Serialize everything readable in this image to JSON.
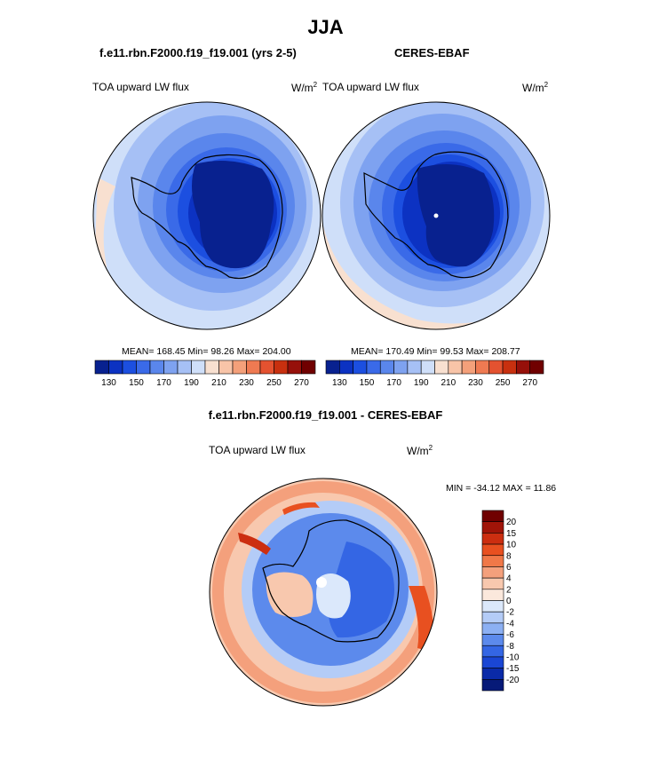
{
  "figure": {
    "season": "JJA",
    "model_case": "f.e11.rbn.F2000.f19_f19.001 (yrs 2-5)",
    "obs_case": "CERES-EBAF",
    "diff_title": "f.e11.rbn.F2000.f19_f19.001 - CERES-EBAF"
  },
  "panels": {
    "model": {
      "field": "TOA upward LW flux",
      "units": "W/m",
      "units_exp": "2",
      "stats": "MEAN= 168.45  Min=  98.26  Max= 204.00",
      "colorbar_ticks": [
        "130",
        "150",
        "170",
        "190",
        "210",
        "230",
        "250",
        "270"
      ]
    },
    "obs": {
      "field": "TOA upward LW flux",
      "units": "W/m",
      "units_exp": "2",
      "stats": "MEAN= 170.49  Min=  99.53  Max= 208.77",
      "colorbar_ticks": [
        "130",
        "150",
        "170",
        "190",
        "210",
        "230",
        "250",
        "270"
      ]
    },
    "diff": {
      "field": "TOA upward LW flux",
      "units": "W/m",
      "units_exp": "2",
      "stats": "MIN = -34.12 MAX =  11.86",
      "colorbar_ticks": [
        "20",
        "15",
        "10",
        "8",
        "6",
        "4",
        "2",
        "0",
        "-2",
        "-4",
        "-6",
        "-8",
        "-10",
        "-15",
        "-20"
      ]
    }
  },
  "colors": {
    "abs_palette": [
      "#08218f",
      "#0c32c2",
      "#1c4fe0",
      "#3a6ae8",
      "#5a86ec",
      "#7ea2f0",
      "#a6c0f5",
      "#cfdff9",
      "#f8e0d0",
      "#f8c4a8",
      "#f4a07a",
      "#ef7a52",
      "#e45230",
      "#c8300f",
      "#96100a",
      "#700000"
    ],
    "diff_palette": [
      "#700000",
      "#a01408",
      "#cc2e10",
      "#e85020",
      "#f07848",
      "#f4a07c",
      "#f8c8ae",
      "#fbe8dc",
      "#dbe8fb",
      "#b4ccf7",
      "#8cb0f3",
      "#5c8aec",
      "#3466e4",
      "#1a46d4",
      "#0a2aa8",
      "#061a78"
    ]
  }
}
